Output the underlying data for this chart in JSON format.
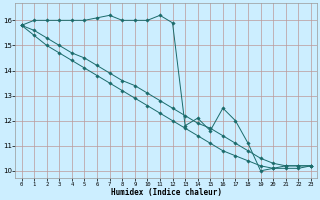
{
  "title": "",
  "xlabel": "Humidex (Indice chaleur)",
  "background_color": "#cceeff",
  "grid_color_major": "#bb9999",
  "grid_color_minor": "#bb9999",
  "line_color": "#1a6b6b",
  "xlim": [
    -0.5,
    23.5
  ],
  "ylim": [
    9.7,
    16.7
  ],
  "xticks": [
    0,
    1,
    2,
    3,
    4,
    5,
    6,
    7,
    8,
    9,
    10,
    11,
    12,
    13,
    14,
    15,
    16,
    17,
    18,
    19,
    20,
    21,
    22,
    23
  ],
  "yticks": [
    10,
    11,
    12,
    13,
    14,
    15,
    16
  ],
  "series1_x": [
    0,
    1,
    2,
    3,
    4,
    5,
    6,
    7,
    8,
    9,
    10,
    11,
    12,
    13,
    14,
    15,
    16,
    17,
    18,
    19,
    20,
    21,
    22,
    23
  ],
  "series1_y": [
    15.8,
    16.0,
    16.0,
    16.0,
    16.0,
    16.0,
    16.1,
    16.2,
    16.0,
    16.0,
    16.0,
    16.2,
    15.9,
    11.8,
    12.1,
    11.6,
    12.5,
    12.0,
    11.1,
    10.0,
    10.1,
    10.2,
    10.2,
    10.2
  ],
  "series2_x": [
    0,
    1,
    2,
    3,
    4,
    5,
    6,
    7,
    8,
    9,
    10,
    11,
    12,
    13,
    14,
    15,
    16,
    17,
    18,
    19,
    20,
    21,
    22,
    23
  ],
  "series2_y": [
    15.8,
    15.6,
    15.3,
    15.0,
    14.7,
    14.5,
    14.2,
    13.9,
    13.6,
    13.4,
    13.1,
    12.8,
    12.5,
    12.2,
    11.9,
    11.7,
    11.4,
    11.1,
    10.8,
    10.5,
    10.3,
    10.2,
    10.2,
    10.2
  ],
  "series3_x": [
    0,
    1,
    2,
    3,
    4,
    5,
    6,
    7,
    8,
    9,
    10,
    11,
    12,
    13,
    14,
    15,
    16,
    17,
    18,
    19,
    20,
    21,
    22,
    23
  ],
  "series3_y": [
    15.8,
    15.4,
    15.0,
    14.7,
    14.4,
    14.1,
    13.8,
    13.5,
    13.2,
    12.9,
    12.6,
    12.3,
    12.0,
    11.7,
    11.4,
    11.1,
    10.8,
    10.6,
    10.4,
    10.2,
    10.1,
    10.1,
    10.1,
    10.2
  ]
}
